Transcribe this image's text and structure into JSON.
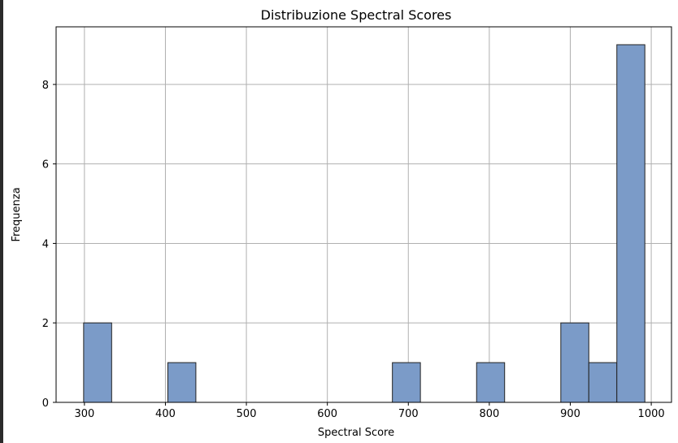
{
  "chart_data": {
    "type": "bar",
    "title": "Distribuzione Spectral Scores",
    "xlabel": "Spectral Score",
    "ylabel": "Frequenza",
    "xlim": [
      265,
      1025
    ],
    "ylim": [
      0,
      9.45
    ],
    "grid": true,
    "xticks": [
      300,
      400,
      500,
      600,
      700,
      800,
      900,
      1000
    ],
    "yticks": [
      0,
      2,
      4,
      6,
      8
    ],
    "bar_color": "#7b9bc8",
    "bar_edge_color": "#222222",
    "bins": [
      {
        "start": 299.0,
        "end": 333.6,
        "count": 2
      },
      {
        "start": 403.0,
        "end": 437.6,
        "count": 1
      },
      {
        "start": 680.3,
        "end": 714.9,
        "count": 1
      },
      {
        "start": 784.3,
        "end": 818.9,
        "count": 1
      },
      {
        "start": 888.3,
        "end": 922.9,
        "count": 2
      },
      {
        "start": 922.9,
        "end": 957.5,
        "count": 1
      },
      {
        "start": 957.5,
        "end": 992.1,
        "count": 9
      }
    ]
  }
}
